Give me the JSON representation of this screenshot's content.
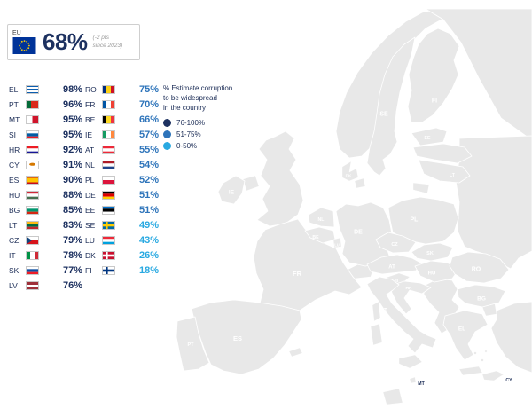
{
  "chart_data": {
    "type": "choropleth",
    "title": "% Estimate corruption to be widespread in the country",
    "title_lines": [
      "% Estimate corruption",
      "to be widespread",
      "in the country"
    ],
    "eu_average": {
      "label": "EU",
      "value": "68%",
      "note": "(-2 pts since 2023)",
      "note_lines": [
        "(-2 pts",
        "since 2023)"
      ]
    },
    "colors": {
      "high": "#1d3160",
      "mid": "#2e74ba",
      "low": "#29a9e1",
      "non_eu": "#d2d2d2"
    },
    "legend": [
      {
        "key": "high",
        "label": "76-100%"
      },
      {
        "key": "mid",
        "label": "51-75%"
      },
      {
        "key": "low",
        "label": "0-50%"
      }
    ],
    "series": [
      {
        "code": "EL",
        "value": 98,
        "display": "98%",
        "group": "high"
      },
      {
        "code": "PT",
        "value": 96,
        "display": "96%",
        "group": "high"
      },
      {
        "code": "MT",
        "value": 95,
        "display": "95%",
        "group": "high"
      },
      {
        "code": "SI",
        "value": 95,
        "display": "95%",
        "group": "high"
      },
      {
        "code": "HR",
        "value": 92,
        "display": "92%",
        "group": "high"
      },
      {
        "code": "CY",
        "value": 91,
        "display": "91%",
        "group": "high"
      },
      {
        "code": "ES",
        "value": 90,
        "display": "90%",
        "group": "high"
      },
      {
        "code": "HU",
        "value": 88,
        "display": "88%",
        "group": "high"
      },
      {
        "code": "BG",
        "value": 85,
        "display": "85%",
        "group": "high"
      },
      {
        "code": "LT",
        "value": 83,
        "display": "83%",
        "group": "high"
      },
      {
        "code": "CZ",
        "value": 79,
        "display": "79%",
        "group": "high"
      },
      {
        "code": "IT",
        "value": 78,
        "display": "78%",
        "group": "high"
      },
      {
        "code": "SK",
        "value": 77,
        "display": "77%",
        "group": "high"
      },
      {
        "code": "LV",
        "value": 76,
        "display": "76%",
        "group": "high"
      },
      {
        "code": "RO",
        "value": 75,
        "display": "75%",
        "group": "mid"
      },
      {
        "code": "FR",
        "value": 70,
        "display": "70%",
        "group": "mid"
      },
      {
        "code": "BE",
        "value": 66,
        "display": "66%",
        "group": "mid"
      },
      {
        "code": "IE",
        "value": 57,
        "display": "57%",
        "group": "mid"
      },
      {
        "code": "AT",
        "value": 55,
        "display": "55%",
        "group": "mid"
      },
      {
        "code": "NL",
        "value": 54,
        "display": "54%",
        "group": "mid"
      },
      {
        "code": "PL",
        "value": 52,
        "display": "52%",
        "group": "mid"
      },
      {
        "code": "DE",
        "value": 51,
        "display": "51%",
        "group": "mid"
      },
      {
        "code": "EE",
        "value": 51,
        "display": "51%",
        "group": "mid"
      },
      {
        "code": "SE",
        "value": 49,
        "display": "49%",
        "group": "low"
      },
      {
        "code": "LU",
        "value": 43,
        "display": "43%",
        "group": "low"
      },
      {
        "code": "DK",
        "value": 26,
        "display": "26%",
        "group": "low"
      },
      {
        "code": "FI",
        "value": 18,
        "display": "18%",
        "group": "low"
      }
    ],
    "columns": {
      "col1_count": 14
    },
    "legend_position": "top-center",
    "non_eu_note": "non-EU countries shown in grey"
  }
}
